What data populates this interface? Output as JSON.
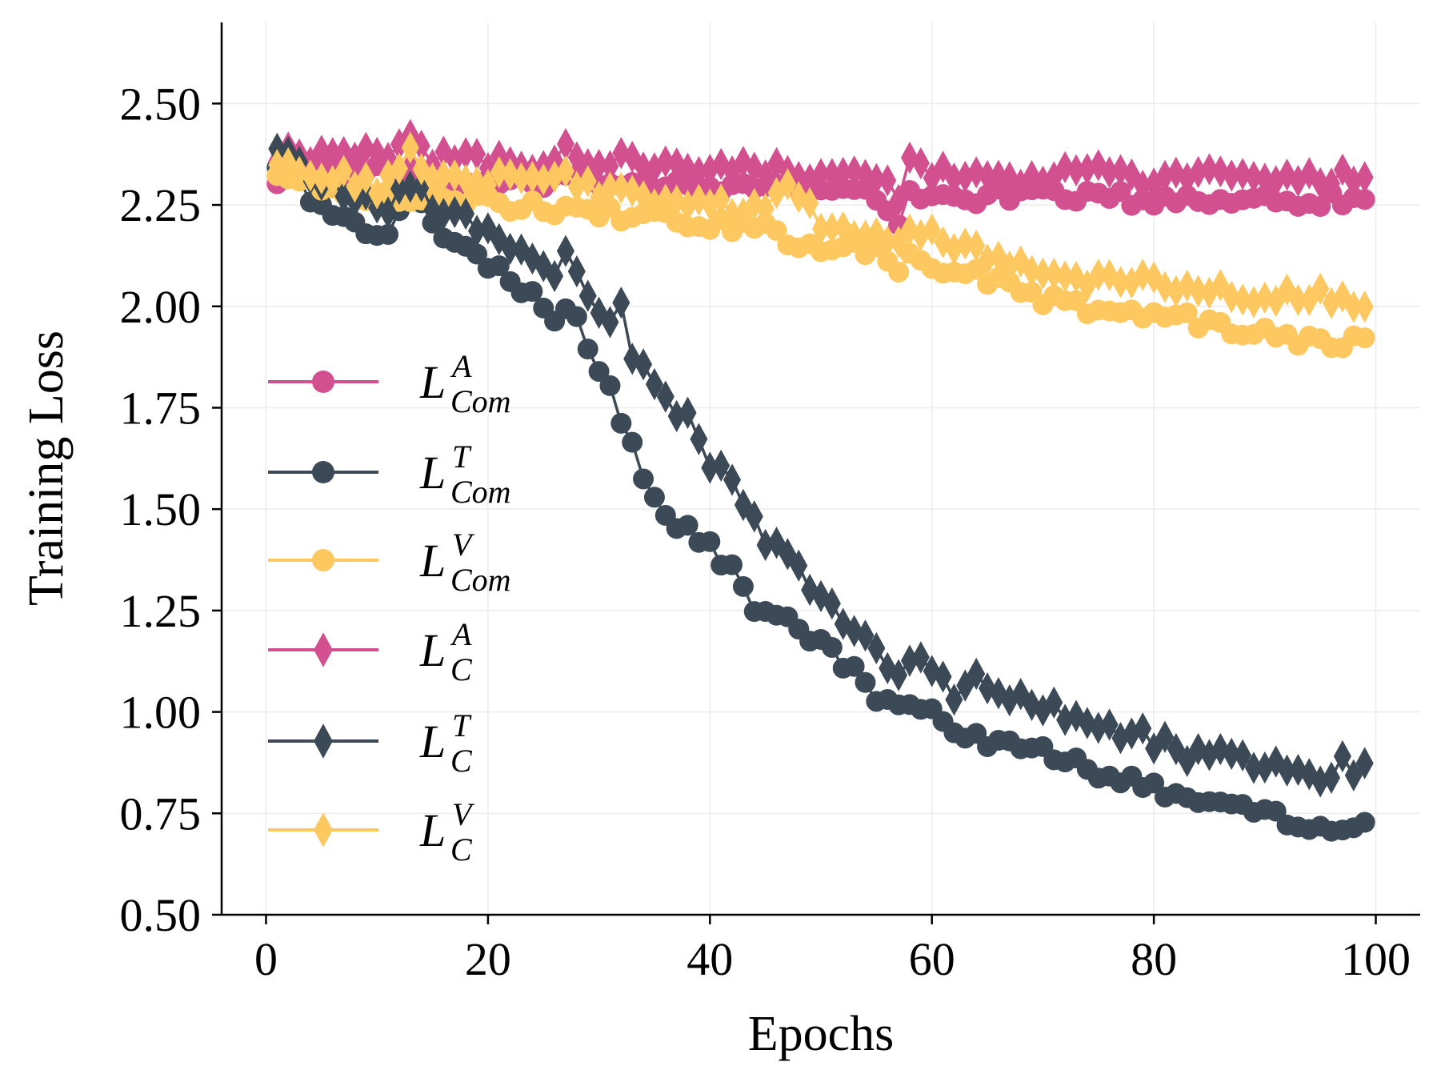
{
  "chart_data": {
    "type": "line",
    "xlabel": "Epochs",
    "ylabel": "Training Loss",
    "xlim": [
      -4,
      104
    ],
    "ylim": [
      0.5,
      2.7
    ],
    "xticks": [
      0,
      20,
      40,
      60,
      80,
      100
    ],
    "xtick_labels": [
      "0",
      "20",
      "40",
      "60",
      "80",
      "100"
    ],
    "yticks": [
      0.5,
      0.75,
      1.0,
      1.25,
      1.5,
      1.75,
      2.0,
      2.25,
      2.5
    ],
    "ytick_labels": [
      "0.50",
      "0.75",
      "1.00",
      "1.25",
      "1.50",
      "1.75",
      "2.00",
      "2.25",
      "2.50"
    ],
    "grid": true,
    "legend_position": "left-center",
    "colors": {
      "A": "#d35090",
      "T": "#3b4a56",
      "V": "#fcc85f"
    },
    "series": [
      {
        "name": "L_Com^A",
        "legend_base": "L",
        "legend_sub": "Com",
        "legend_sup": "A",
        "color": "#d35090",
        "marker": "circle",
        "anchors": [
          [
            1,
            2.32
          ],
          [
            5,
            2.33
          ],
          [
            10,
            2.34
          ],
          [
            13,
            2.33
          ],
          [
            15,
            2.3
          ],
          [
            20,
            2.3
          ],
          [
            30,
            2.31
          ],
          [
            40,
            2.3
          ],
          [
            50,
            2.29
          ],
          [
            55,
            2.27
          ],
          [
            57,
            2.2
          ],
          [
            58,
            2.28
          ],
          [
            60,
            2.27
          ],
          [
            65,
            2.27
          ],
          [
            70,
            2.28
          ],
          [
            75,
            2.27
          ],
          [
            80,
            2.26
          ],
          [
            85,
            2.26
          ],
          [
            90,
            2.27
          ],
          [
            95,
            2.26
          ],
          [
            99,
            2.27
          ]
        ]
      },
      {
        "name": "L_Com^T",
        "legend_base": "L",
        "legend_sub": "Com",
        "legend_sup": "T",
        "color": "#3b4a56",
        "marker": "circle",
        "anchors": [
          [
            1,
            2.36
          ],
          [
            4,
            2.27
          ],
          [
            8,
            2.2
          ],
          [
            11,
            2.17
          ],
          [
            13,
            2.28
          ],
          [
            15,
            2.2
          ],
          [
            18,
            2.15
          ],
          [
            20,
            2.1
          ],
          [
            24,
            2.03
          ],
          [
            26,
            1.98
          ],
          [
            28,
            1.98
          ],
          [
            29,
            1.9
          ],
          [
            31,
            1.8
          ],
          [
            33,
            1.65
          ],
          [
            35,
            1.53
          ],
          [
            37,
            1.47
          ],
          [
            40,
            1.41
          ],
          [
            42,
            1.35
          ],
          [
            44,
            1.25
          ],
          [
            47,
            1.22
          ],
          [
            50,
            1.17
          ],
          [
            53,
            1.1
          ],
          [
            55,
            1.04
          ],
          [
            57,
            1.01
          ],
          [
            60,
            1.01
          ],
          [
            62,
            0.95
          ],
          [
            65,
            0.92
          ],
          [
            70,
            0.9
          ],
          [
            75,
            0.85
          ],
          [
            80,
            0.81
          ],
          [
            85,
            0.78
          ],
          [
            90,
            0.75
          ],
          [
            95,
            0.72
          ],
          [
            99,
            0.73
          ]
        ]
      },
      {
        "name": "L_Com^V",
        "legend_base": "L",
        "legend_sub": "Com",
        "legend_sup": "V",
        "color": "#fcc85f",
        "marker": "circle",
        "anchors": [
          [
            1,
            2.34
          ],
          [
            5,
            2.3
          ],
          [
            10,
            2.27
          ],
          [
            15,
            2.27
          ],
          [
            20,
            2.26
          ],
          [
            25,
            2.24
          ],
          [
            30,
            2.23
          ],
          [
            35,
            2.22
          ],
          [
            40,
            2.2
          ],
          [
            45,
            2.19
          ],
          [
            48,
            2.15
          ],
          [
            52,
            2.15
          ],
          [
            55,
            2.13
          ],
          [
            57,
            2.07
          ],
          [
            58,
            2.12
          ],
          [
            60,
            2.1
          ],
          [
            65,
            2.07
          ],
          [
            70,
            2.02
          ],
          [
            75,
            1.99
          ],
          [
            78,
            1.98
          ],
          [
            80,
            1.98
          ],
          [
            85,
            1.96
          ],
          [
            90,
            1.93
          ],
          [
            95,
            1.91
          ],
          [
            99,
            1.92
          ]
        ]
      },
      {
        "name": "L_C^A",
        "legend_base": "L",
        "legend_sub": "C",
        "legend_sup": "A",
        "color": "#d35090",
        "marker": "diamond",
        "anchors": [
          [
            1,
            2.38
          ],
          [
            5,
            2.37
          ],
          [
            10,
            2.37
          ],
          [
            13,
            2.41
          ],
          [
            15,
            2.37
          ],
          [
            20,
            2.35
          ],
          [
            25,
            2.35
          ],
          [
            27,
            2.39
          ],
          [
            30,
            2.36
          ],
          [
            35,
            2.35
          ],
          [
            40,
            2.33
          ],
          [
            45,
            2.34
          ],
          [
            50,
            2.33
          ],
          [
            55,
            2.3
          ],
          [
            57,
            2.28
          ],
          [
            58,
            2.35
          ],
          [
            60,
            2.33
          ],
          [
            65,
            2.31
          ],
          [
            70,
            2.32
          ],
          [
            75,
            2.33
          ],
          [
            80,
            2.31
          ],
          [
            85,
            2.32
          ],
          [
            90,
            2.33
          ],
          [
            95,
            2.32
          ],
          [
            99,
            2.31
          ]
        ]
      },
      {
        "name": "L_C^T",
        "legend_base": "L",
        "legend_sub": "C",
        "legend_sup": "T",
        "color": "#3b4a56",
        "marker": "diamond",
        "anchors": [
          [
            1,
            2.41
          ],
          [
            4,
            2.31
          ],
          [
            8,
            2.27
          ],
          [
            11,
            2.24
          ],
          [
            13,
            2.3
          ],
          [
            15,
            2.25
          ],
          [
            18,
            2.22
          ],
          [
            20,
            2.18
          ],
          [
            23,
            2.14
          ],
          [
            26,
            2.08
          ],
          [
            27,
            2.13
          ],
          [
            29,
            2.03
          ],
          [
            31,
            1.96
          ],
          [
            32,
            1.99
          ],
          [
            33,
            1.88
          ],
          [
            35,
            1.8
          ],
          [
            38,
            1.72
          ],
          [
            40,
            1.62
          ],
          [
            43,
            1.53
          ],
          [
            45,
            1.42
          ],
          [
            47,
            1.38
          ],
          [
            49,
            1.3
          ],
          [
            51,
            1.25
          ],
          [
            53,
            1.22
          ],
          [
            55,
            1.15
          ],
          [
            57,
            1.1
          ],
          [
            60,
            1.12
          ],
          [
            62,
            1.04
          ],
          [
            64,
            1.08
          ],
          [
            66,
            1.04
          ],
          [
            70,
            1.01
          ],
          [
            75,
            0.97
          ],
          [
            80,
            0.93
          ],
          [
            81,
            0.96
          ],
          [
            83,
            0.9
          ],
          [
            85,
            0.91
          ],
          [
            87,
            0.88
          ],
          [
            90,
            0.87
          ],
          [
            93,
            0.87
          ],
          [
            95,
            0.83
          ],
          [
            97,
            0.87
          ],
          [
            99,
            0.86
          ]
        ]
      },
      {
        "name": "L_C^V",
        "legend_base": "L",
        "legend_sub": "C",
        "legend_sup": "V",
        "color": "#fcc85f",
        "marker": "diamond",
        "anchors": [
          [
            1,
            2.37
          ],
          [
            5,
            2.33
          ],
          [
            10,
            2.3
          ],
          [
            13,
            2.37
          ],
          [
            15,
            2.32
          ],
          [
            20,
            2.31
          ],
          [
            25,
            2.31
          ],
          [
            27,
            2.33
          ],
          [
            30,
            2.28
          ],
          [
            35,
            2.27
          ],
          [
            40,
            2.25
          ],
          [
            45,
            2.24
          ],
          [
            47,
            2.28
          ],
          [
            50,
            2.21
          ],
          [
            55,
            2.18
          ],
          [
            57,
            2.16
          ],
          [
            58,
            2.21
          ],
          [
            60,
            2.17
          ],
          [
            65,
            2.13
          ],
          [
            70,
            2.08
          ],
          [
            75,
            2.07
          ],
          [
            80,
            2.06
          ],
          [
            85,
            2.04
          ],
          [
            90,
            2.02
          ],
          [
            95,
            2.03
          ],
          [
            99,
            1.98
          ]
        ]
      }
    ]
  }
}
